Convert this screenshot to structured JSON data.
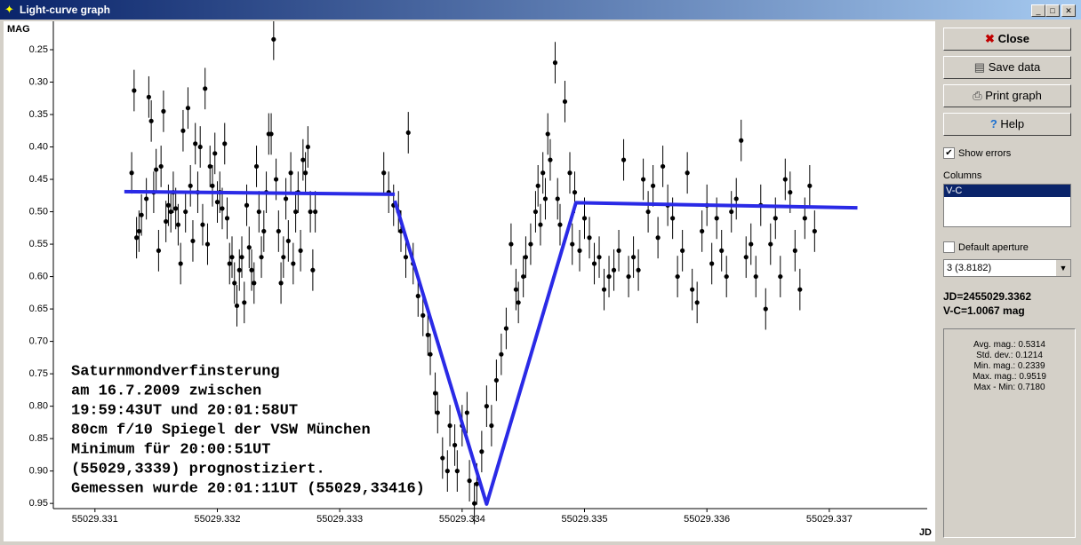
{
  "window": {
    "title": "Light-curve graph"
  },
  "buttons": {
    "close": "Close",
    "save": "Save data",
    "print": "Print graph",
    "help": "Help"
  },
  "options": {
    "show_errors": "Show errors",
    "columns_label": "Columns",
    "columns": [
      "V-C"
    ],
    "default_aperture": "Default aperture",
    "aperture": "3 (3.8182)"
  },
  "cursor": {
    "jd": "JD=2455029.3362",
    "value": "V-C=1.0067 mag"
  },
  "stats": [
    "Avg. mag.: 0.5314",
    "Std. dev.: 0.1214",
    "Min. mag.: 0.2339",
    "Max. mag.: 0.9519",
    "Max - Min: 0.7180"
  ],
  "chart_data": {
    "type": "scatter",
    "y_label": "MAG",
    "x_label": "JD",
    "y_inverted": true,
    "color": "#000000",
    "annotation": [
      "Saturnmondverfinsterung",
      "am 16.7.2009 zwischen",
      "19:59:43UT und 20:01:58UT",
      "80cm f/10 Spiegel der VSW München",
      "Minimum für 20:00:51UT",
      "(55029,3339) prognostiziert.",
      "Gemessen wurde 20:01:11UT (55029,33416)"
    ],
    "xlim": [
      55029.33066,
      55029.3378
    ],
    "ylim": [
      0.2185,
      0.958
    ],
    "xticks": [
      55029.331,
      55029.332,
      55029.333,
      55029.334,
      55029.335,
      55029.336,
      55029.337
    ],
    "yticks": [
      0.25,
      {
        "value": 0.3,
        "label": "0.30"
      },
      0.35,
      {
        "value": 0.4,
        "label": "0.40"
      },
      0.45,
      {
        "value": 0.5,
        "label": "0.50"
      },
      0.55,
      {
        "value": 0.6,
        "label": "0.60"
      },
      0.65,
      {
        "value": 0.7,
        "label": "0.70"
      },
      0.75,
      {
        "value": 0.8,
        "label": "0.80"
      },
      0.85,
      {
        "value": 0.9,
        "label": "0.90"
      },
      0.95
    ],
    "error": 0.032,
    "x": [
      55029.3313,
      55029.33132,
      55029.33134,
      55029.33136,
      55029.33138,
      55029.33142,
      55029.33144,
      55029.33146,
      55029.33148,
      55029.3315,
      55029.33152,
      55029.33154,
      55029.33156,
      55029.33158,
      55029.3316,
      55029.33162,
      55029.33164,
      55029.33166,
      55029.33168,
      55029.3317,
      55029.33172,
      55029.33174,
      55029.33176,
      55029.33178,
      55029.3318,
      55029.33182,
      55029.33184,
      55029.33186,
      55029.33188,
      55029.3319,
      55029.33192,
      55029.33194,
      55029.33196,
      55029.33198,
      55029.332,
      55029.33202,
      55029.33204,
      55029.33206,
      55029.33208,
      55029.3321,
      55029.33212,
      55029.33214,
      55029.33216,
      55029.33218,
      55029.3322,
      55029.33222,
      55029.33224,
      55029.33226,
      55029.33228,
      55029.3323,
      55029.33232,
      55029.33234,
      55029.33236,
      55029.33238,
      55029.3324,
      55029.33242,
      55029.33244,
      55029.33246,
      55029.33248,
      55029.3325,
      55029.33252,
      55029.33254,
      55029.33256,
      55029.33258,
      55029.3326,
      55029.33262,
      55029.33264,
      55029.33266,
      55029.33268,
      55029.3327,
      55029.33272,
      55029.33274,
      55029.33276,
      55029.33278,
      55029.3328,
      55029.33336,
      55029.3334,
      55029.33344,
      55029.33348,
      55029.3335,
      55029.33354,
      55029.33356,
      55029.3336,
      55029.33364,
      55029.33368,
      55029.33372,
      55029.33374,
      55029.33378,
      55029.3338,
      55029.33384,
      55029.33388,
      55029.3339,
      55029.33394,
      55029.33396,
      55029.334,
      55029.33404,
      55029.33406,
      55029.3341,
      55029.33412,
      55029.33416,
      55029.3342,
      55029.33424,
      55029.33428,
      55029.33432,
      55029.33436,
      55029.3344,
      55029.33444,
      55029.33446,
      55029.3345,
      55029.33452,
      55029.33456,
      55029.3346,
      55029.33462,
      55029.33464,
      55029.33466,
      55029.33468,
      55029.3347,
      55029.33472,
      55029.33476,
      55029.33478,
      55029.3348,
      55029.33484,
      55029.33488,
      55029.3349,
      55029.33492,
      55029.33496,
      55029.335,
      55029.33504,
      55029.33508,
      55029.33512,
      55029.33516,
      55029.3352,
      55029.33524,
      55029.33528,
      55029.33532,
      55029.33536,
      55029.3354,
      55029.33544,
      55029.33548,
      55029.33552,
      55029.33556,
      55029.3356,
      55029.33564,
      55029.33568,
      55029.33572,
      55029.33576,
      55029.3358,
      55029.33584,
      55029.33588,
      55029.33592,
      55029.33596,
      55029.336,
      55029.33604,
      55029.33608,
      55029.33612,
      55029.33616,
      55029.3362,
      55029.33624,
      55029.33628,
      55029.33632,
      55029.33636,
      55029.3364,
      55029.33644,
      55029.33648,
      55029.33652,
      55029.33656,
      55029.3366,
      55029.33664,
      55029.33668,
      55029.33672,
      55029.33676,
      55029.3368,
      55029.33684,
      55029.33688
    ],
    "values": [
      0.44,
      0.313,
      0.54,
      0.53,
      0.505,
      0.48,
      0.323,
      0.36,
      0.47,
      0.435,
      0.56,
      0.43,
      0.345,
      0.515,
      0.49,
      0.5,
      0.47,
      0.495,
      0.52,
      0.58,
      0.375,
      0.5,
      0.34,
      0.46,
      0.545,
      0.395,
      0.47,
      0.4,
      0.52,
      0.31,
      0.55,
      0.43,
      0.46,
      0.41,
      0.485,
      0.47,
      0.495,
      0.395,
      0.51,
      0.58,
      0.57,
      0.61,
      0.645,
      0.59,
      0.57,
      0.64,
      0.49,
      0.555,
      0.59,
      0.61,
      0.43,
      0.5,
      0.57,
      0.53,
      0.47,
      0.38,
      0.38,
      0.234,
      0.45,
      0.53,
      0.61,
      0.57,
      0.48,
      0.545,
      0.44,
      0.58,
      0.5,
      0.47,
      0.56,
      0.42,
      0.44,
      0.4,
      0.5,
      0.59,
      0.5,
      0.44,
      0.47,
      0.49,
      0.5,
      0.53,
      0.57,
      0.378,
      0.58,
      0.63,
      0.66,
      0.69,
      0.72,
      0.78,
      0.81,
      0.88,
      0.9,
      0.83,
      0.86,
      0.9,
      0.83,
      0.81,
      0.915,
      0.95,
      0.92,
      0.87,
      0.8,
      0.83,
      0.76,
      0.72,
      0.68,
      0.55,
      0.62,
      0.64,
      0.6,
      0.57,
      0.55,
      0.5,
      0.46,
      0.52,
      0.44,
      0.48,
      0.38,
      0.42,
      0.27,
      0.48,
      0.52,
      0.33,
      0.44,
      0.55,
      0.47,
      0.56,
      0.51,
      0.54,
      0.58,
      0.57,
      0.62,
      0.6,
      0.59,
      0.56,
      0.42,
      0.6,
      0.57,
      0.59,
      0.45,
      0.5,
      0.46,
      0.54,
      0.43,
      0.49,
      0.51,
      0.6,
      0.56,
      0.44,
      0.62,
      0.64,
      0.53,
      0.49,
      0.58,
      0.51,
      0.56,
      0.6,
      0.5,
      0.48,
      0.39,
      0.57,
      0.55,
      0.6,
      0.49,
      0.65,
      0.55,
      0.51,
      0.6,
      0.45,
      0.47,
      0.56,
      0.62,
      0.51,
      0.46,
      0.53
    ],
    "fit_lines": [
      {
        "color": "#2a2ae6",
        "x": [
          55029.33124,
          55029.33345
        ],
        "values": [
          0.469,
          0.473
        ]
      },
      {
        "color": "#2a2ae6",
        "x": [
          55029.33345,
          55029.3342,
          55029.33493,
          55029.33723
        ],
        "values": [
          0.483,
          0.951,
          0.486,
          0.494
        ]
      }
    ]
  }
}
